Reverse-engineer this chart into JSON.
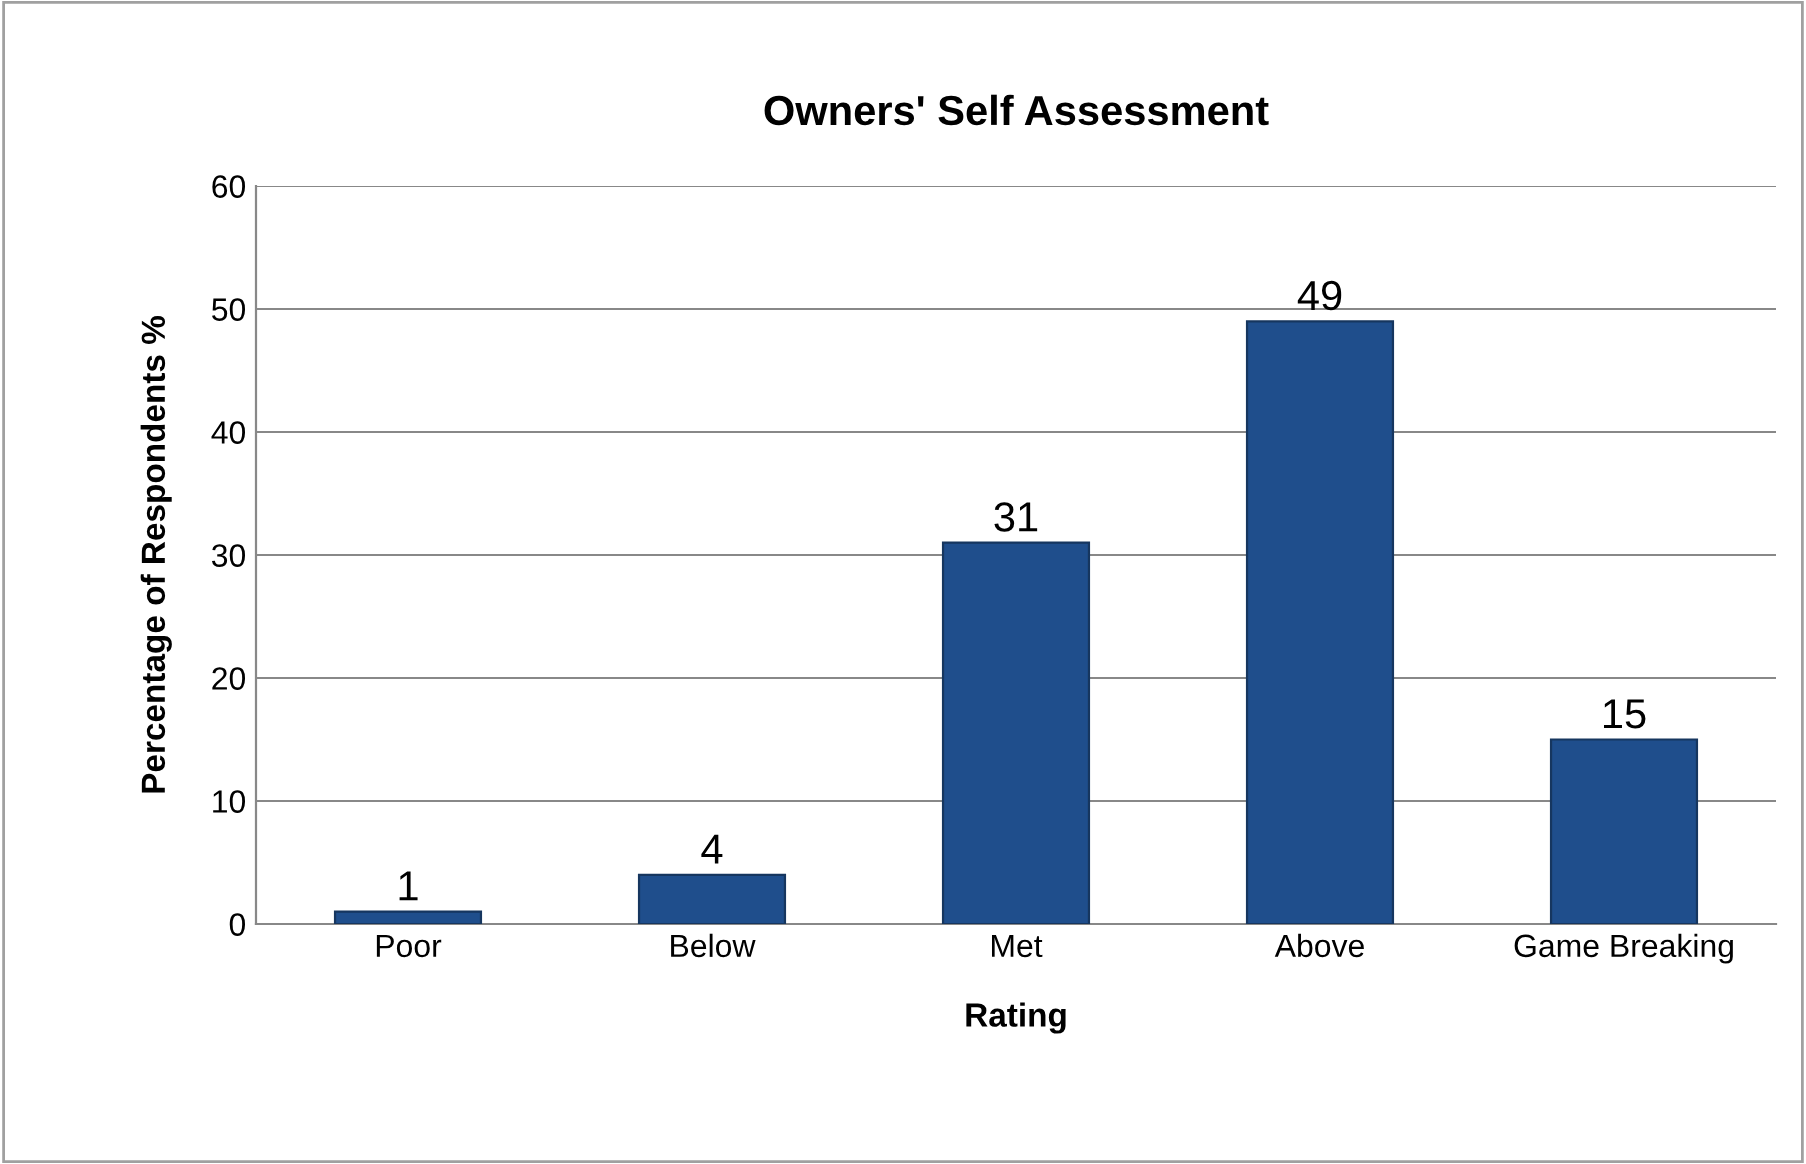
{
  "chart_data": {
    "type": "bar",
    "title": "Owners' Self Assessment",
    "xlabel": "Rating",
    "ylabel": "Percentage of Respondents %",
    "categories": [
      "Poor",
      "Below",
      "Met",
      "Above",
      "Game Breaking"
    ],
    "values": [
      1,
      4,
      31,
      49,
      15
    ],
    "color": "#1f4e8c",
    "ylim": [
      0,
      60
    ],
    "yticks": [
      0,
      10,
      20,
      30,
      40,
      50,
      60
    ],
    "grid": "y",
    "data_labels": true
  }
}
